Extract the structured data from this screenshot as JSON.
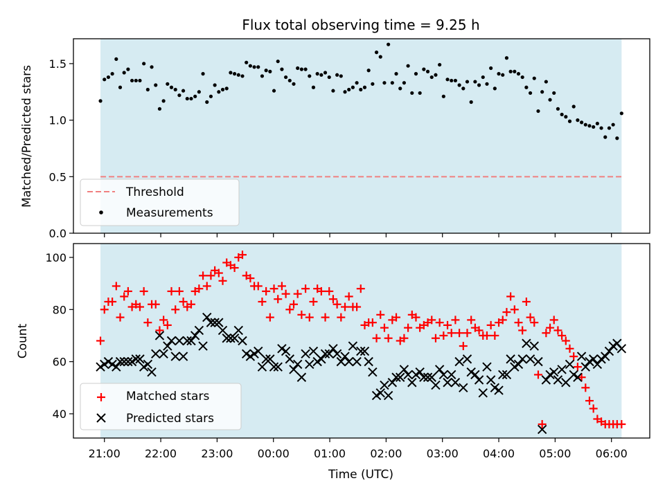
{
  "chart_data": [
    {
      "type": "scatter",
      "title": "Flux total observing time = 9.25 h",
      "xlabel": "",
      "ylabel": "Matched/Predicted stars",
      "xlim_hours": [
        20.45,
        30.68
      ],
      "ylim": [
        0.0,
        1.72
      ],
      "yticks": [
        0.0,
        0.5,
        1.0,
        1.5
      ],
      "ytick_labels": [
        "0.0",
        "0.5",
        "1.0",
        "1.5"
      ],
      "shaded_span_hours": [
        20.93,
        30.18
      ],
      "threshold": {
        "label": "Threshold",
        "value": 0.5,
        "color": "#f08080"
      },
      "measurement_label": "Measurements",
      "legend_position": "lower-left",
      "x_hours": [
        20.93,
        21.0,
        21.07,
        21.14,
        21.21,
        21.28,
        21.35,
        21.42,
        21.49,
        21.56,
        21.63,
        21.7,
        21.77,
        21.84,
        21.91,
        21.98,
        22.05,
        22.12,
        22.19,
        22.26,
        22.33,
        22.4,
        22.47,
        22.54,
        22.61,
        22.68,
        22.75,
        22.82,
        22.89,
        22.96,
        23.03,
        23.1,
        23.17,
        23.24,
        23.31,
        23.38,
        23.45,
        23.52,
        23.59,
        23.66,
        23.73,
        23.8,
        23.87,
        23.94,
        24.01,
        24.08,
        24.15,
        24.22,
        24.29,
        24.36,
        24.43,
        24.5,
        24.57,
        24.64,
        24.71,
        24.78,
        24.85,
        24.92,
        24.99,
        25.06,
        25.13,
        25.2,
        25.27,
        25.34,
        25.41,
        25.48,
        25.55,
        25.62,
        25.69,
        25.76,
        25.83,
        25.9,
        25.97,
        26.04,
        26.11,
        26.18,
        26.25,
        26.32,
        26.39,
        26.46,
        26.53,
        26.6,
        26.67,
        26.74,
        26.81,
        26.88,
        26.95,
        27.02,
        27.09,
        27.16,
        27.23,
        27.3,
        27.37,
        27.44,
        27.51,
        27.58,
        27.65,
        27.72,
        27.79,
        27.86,
        27.93,
        28.0,
        28.07,
        28.14,
        28.21,
        28.28,
        28.35,
        28.42,
        28.49,
        28.56,
        28.63,
        28.7,
        28.77,
        28.84,
        28.91,
        28.98,
        29.05,
        29.12,
        29.19,
        29.26,
        29.33,
        29.4,
        29.47,
        29.54,
        29.61,
        29.68,
        29.75,
        29.82,
        29.89,
        29.96,
        30.03,
        30.1,
        30.18
      ],
      "ratio": [
        1.17,
        1.36,
        1.38,
        1.41,
        1.54,
        1.29,
        1.42,
        1.45,
        1.35,
        1.35,
        1.35,
        1.5,
        1.27,
        1.47,
        1.31,
        1.1,
        1.17,
        1.32,
        1.29,
        1.27,
        1.22,
        1.26,
        1.19,
        1.19,
        1.21,
        1.25,
        1.41,
        1.16,
        1.21,
        1.31,
        1.25,
        1.27,
        1.28,
        1.42,
        1.41,
        1.4,
        1.39,
        1.51,
        1.48,
        1.47,
        1.47,
        1.39,
        1.44,
        1.43,
        1.26,
        1.52,
        1.45,
        1.38,
        1.35,
        1.32,
        1.46,
        1.45,
        1.45,
        1.39,
        1.29,
        1.41,
        1.4,
        1.42,
        1.38,
        1.26,
        1.4,
        1.39,
        1.25,
        1.27,
        1.29,
        1.33,
        1.27,
        1.29,
        1.44,
        1.32,
        1.6,
        1.56,
        1.33,
        1.67,
        1.33,
        1.41,
        1.28,
        1.33,
        1.48,
        1.24,
        1.41,
        1.24,
        1.45,
        1.43,
        1.38,
        1.4,
        1.49,
        1.21,
        1.36,
        1.35,
        1.35,
        1.31,
        1.28,
        1.34,
        1.16,
        1.34,
        1.31,
        1.38,
        1.32,
        1.46,
        1.28,
        1.41,
        1.4,
        1.55,
        1.43,
        1.43,
        1.41,
        1.38,
        1.29,
        1.24,
        1.37,
        1.08,
        1.25,
        1.34,
        1.18,
        1.24,
        1.1,
        1.05,
        1.03,
        0.99,
        1.12,
        1.0,
        0.98,
        0.96,
        0.95,
        0.94,
        0.97,
        0.93,
        0.85,
        0.93,
        0.96,
        0.84,
        1.06
      ]
    },
    {
      "type": "scatter",
      "title": "",
      "xlabel": "Time (UTC)",
      "ylabel": "Count",
      "xlim_hours": [
        20.45,
        30.68
      ],
      "ylim": [
        30.7,
        105.3
      ],
      "yticks": [
        40,
        60,
        80,
        100
      ],
      "ytick_labels": [
        "40",
        "60",
        "80",
        "100"
      ],
      "xticks_hours": [
        21,
        22,
        23,
        24,
        25,
        26,
        27,
        28,
        29,
        30
      ],
      "xtick_labels": [
        "21:00",
        "22:00",
        "23:00",
        "00:00",
        "01:00",
        "02:00",
        "03:00",
        "04:00",
        "05:00",
        "06:00"
      ],
      "shaded_span_hours": [
        20.93,
        30.18
      ],
      "legend_position": "lower-left",
      "series": [
        {
          "name": "Matched stars",
          "marker": "plus",
          "color": "#ff0000",
          "x_hours": [
            20.93,
            21.0,
            21.07,
            21.14,
            21.21,
            21.28,
            21.35,
            21.42,
            21.49,
            21.56,
            21.63,
            21.7,
            21.77,
            21.84,
            21.91,
            21.98,
            22.05,
            22.12,
            22.19,
            22.26,
            22.33,
            22.4,
            22.47,
            22.54,
            22.61,
            22.68,
            22.75,
            22.82,
            22.89,
            22.96,
            23.03,
            23.1,
            23.17,
            23.24,
            23.31,
            23.38,
            23.45,
            23.52,
            23.59,
            23.66,
            23.73,
            23.8,
            23.87,
            23.94,
            24.01,
            24.08,
            24.15,
            24.22,
            24.29,
            24.36,
            24.43,
            24.5,
            24.57,
            24.64,
            24.71,
            24.78,
            24.85,
            24.92,
            24.99,
            25.06,
            25.13,
            25.2,
            25.27,
            25.34,
            25.41,
            25.48,
            25.55,
            25.62,
            25.69,
            25.76,
            25.83,
            25.9,
            25.97,
            26.04,
            26.11,
            26.18,
            26.25,
            26.32,
            26.39,
            26.46,
            26.53,
            26.6,
            26.67,
            26.74,
            26.81,
            26.88,
            26.95,
            27.02,
            27.09,
            27.16,
            27.23,
            27.3,
            27.37,
            27.44,
            27.51,
            27.58,
            27.65,
            27.72,
            27.79,
            27.86,
            27.93,
            28.0,
            28.07,
            28.14,
            28.21,
            28.28,
            28.35,
            28.42,
            28.49,
            28.56,
            28.63,
            28.7,
            28.77,
            28.84,
            28.91,
            28.98,
            29.05,
            29.12,
            29.19,
            29.26,
            29.33,
            29.4,
            29.47,
            29.54,
            29.61,
            29.68,
            29.75,
            29.82,
            29.89,
            29.96,
            30.03,
            30.1,
            30.18
          ],
          "values": [
            68,
            80,
            83,
            83,
            89,
            77,
            85,
            87,
            81,
            82,
            81,
            87,
            75,
            82,
            82,
            72,
            76,
            74,
            87,
            80,
            87,
            83,
            81,
            82,
            87,
            88,
            93,
            89,
            93,
            95,
            94,
            91,
            98,
            97,
            96,
            100,
            101,
            93,
            92,
            89,
            89,
            83,
            87,
            77,
            88,
            84,
            89,
            86,
            80,
            82,
            86,
            78,
            88,
            77,
            83,
            88,
            87,
            77,
            87,
            84,
            82,
            77,
            81,
            85,
            81,
            81,
            88,
            74,
            75,
            75,
            69,
            78,
            73,
            69,
            76,
            77,
            68,
            69,
            73,
            78,
            77,
            73,
            74,
            75,
            76,
            69,
            75,
            70,
            74,
            71,
            76,
            71,
            66,
            71,
            76,
            73,
            72,
            70,
            70,
            74,
            70,
            75,
            76,
            79,
            85,
            80,
            75,
            72,
            83,
            77,
            75,
            55,
            36,
            71,
            73,
            76,
            72,
            70,
            68,
            65,
            62,
            58,
            54,
            50,
            45,
            42,
            38,
            37,
            36,
            36,
            36,
            36,
            36
          ]
        },
        {
          "name": "Predicted stars",
          "marker": "x",
          "color": "#000000",
          "x_hours": [
            20.93,
            21.0,
            21.07,
            21.14,
            21.21,
            21.28,
            21.35,
            21.42,
            21.49,
            21.56,
            21.63,
            21.7,
            21.77,
            21.84,
            21.91,
            21.98,
            22.05,
            22.12,
            22.19,
            22.26,
            22.33,
            22.4,
            22.47,
            22.54,
            22.61,
            22.68,
            22.75,
            22.82,
            22.89,
            22.96,
            23.03,
            23.1,
            23.17,
            23.24,
            23.31,
            23.38,
            23.45,
            23.52,
            23.59,
            23.66,
            23.73,
            23.8,
            23.87,
            23.94,
            24.01,
            24.08,
            24.15,
            24.22,
            24.29,
            24.36,
            24.43,
            24.5,
            24.57,
            24.64,
            24.71,
            24.78,
            24.85,
            24.92,
            24.99,
            25.06,
            25.13,
            25.2,
            25.27,
            25.34,
            25.41,
            25.48,
            25.55,
            25.62,
            25.69,
            25.76,
            25.83,
            25.9,
            25.97,
            26.04,
            26.11,
            26.18,
            26.25,
            26.32,
            26.39,
            26.46,
            26.53,
            26.6,
            26.67,
            26.74,
            26.81,
            26.88,
            26.95,
            27.02,
            27.09,
            27.16,
            27.23,
            27.3,
            27.37,
            27.44,
            27.51,
            27.58,
            27.65,
            27.72,
            27.79,
            27.86,
            27.93,
            28.0,
            28.07,
            28.14,
            28.21,
            28.28,
            28.35,
            28.42,
            28.49,
            28.56,
            28.63,
            28.7,
            28.77,
            28.84,
            28.91,
            28.98,
            29.05,
            29.12,
            29.19,
            29.26,
            29.33,
            29.4,
            29.47,
            29.54,
            29.61,
            29.68,
            29.75,
            29.82,
            29.89,
            29.96,
            30.03,
            30.1,
            30.18
          ],
          "values": [
            58,
            59,
            60,
            59,
            58,
            60,
            60,
            60,
            60,
            61,
            61,
            58,
            59,
            56,
            63,
            70,
            63,
            66,
            68,
            62,
            68,
            62,
            68,
            68,
            70,
            72,
            66,
            77,
            75,
            75,
            75,
            72,
            69,
            69,
            69,
            72,
            68,
            63,
            62,
            63,
            64,
            58,
            61,
            61,
            58,
            58,
            65,
            64,
            61,
            57,
            59,
            54,
            63,
            59,
            64,
            60,
            61,
            63,
            63,
            65,
            63,
            60,
            62,
            60,
            66,
            60,
            64,
            64,
            60,
            56,
            47,
            48,
            51,
            47,
            52,
            54,
            54,
            57,
            55,
            52,
            55,
            56,
            54,
            54,
            54,
            51,
            57,
            55,
            52,
            55,
            52,
            60,
            50,
            61,
            56,
            55,
            53,
            48,
            58,
            53,
            50,
            49,
            55,
            55,
            61,
            58,
            59,
            61,
            67,
            61,
            66,
            60,
            34,
            53,
            55,
            56,
            53,
            57,
            52,
            59,
            55,
            54,
            62,
            58,
            60,
            61,
            59,
            61,
            62,
            64,
            66,
            67,
            65
          ]
        }
      ]
    }
  ]
}
